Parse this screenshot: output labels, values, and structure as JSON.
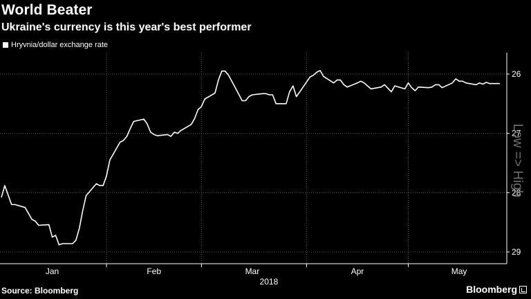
{
  "title": "World Beater",
  "subtitle": "Ukraine's currency is this year's best performer",
  "source": "Source: Bloomberg",
  "brand": "Bloomberg",
  "chart_data": {
    "type": "line",
    "legend": [
      "Hryvnia/dollar exchange rate"
    ],
    "xlabel": "2018",
    "x_tick_labels": [
      "Jan",
      "Feb",
      "Mar",
      "Apr",
      "May"
    ],
    "y_tick_labels": [
      "26",
      "27",
      "28",
      "29"
    ],
    "y_inverted": true,
    "ylim": [
      29.15,
      25.66
    ],
    "y_annotation": "Low => High",
    "grid": true,
    "series": [
      {
        "name": "Hryvnia/dollar exchange rate",
        "color": "#ffffff",
        "x": [
          "2018-01-01",
          "2018-01-02",
          "2018-01-03",
          "2018-01-04",
          "2018-01-05",
          "2018-01-08",
          "2018-01-09",
          "2018-01-10",
          "2018-01-11",
          "2018-01-12",
          "2018-01-15",
          "2018-01-16",
          "2018-01-17",
          "2018-01-18",
          "2018-01-19",
          "2018-01-22",
          "2018-01-23",
          "2018-01-24",
          "2018-01-25",
          "2018-01-26",
          "2018-01-29",
          "2018-01-30",
          "2018-01-31",
          "2018-02-01",
          "2018-02-02",
          "2018-02-05",
          "2018-02-06",
          "2018-02-07",
          "2018-02-08",
          "2018-02-09",
          "2018-02-12",
          "2018-02-13",
          "2018-02-14",
          "2018-02-15",
          "2018-02-16",
          "2018-02-19",
          "2018-02-20",
          "2018-02-21",
          "2018-02-22",
          "2018-02-23",
          "2018-02-26",
          "2018-02-27",
          "2018-02-28",
          "2018-03-01",
          "2018-03-02",
          "2018-03-05",
          "2018-03-06",
          "2018-03-07",
          "2018-03-08",
          "2018-03-09",
          "2018-03-12",
          "2018-03-13",
          "2018-03-14",
          "2018-03-15",
          "2018-03-16",
          "2018-03-19",
          "2018-03-20",
          "2018-03-21",
          "2018-03-22",
          "2018-03-23",
          "2018-03-26",
          "2018-03-27",
          "2018-03-28",
          "2018-03-29",
          "2018-03-30",
          "2018-04-02",
          "2018-04-03",
          "2018-04-04",
          "2018-04-05",
          "2018-04-06",
          "2018-04-09",
          "2018-04-10",
          "2018-04-11",
          "2018-04-12",
          "2018-04-13",
          "2018-04-16",
          "2018-04-17",
          "2018-04-18",
          "2018-04-19",
          "2018-04-20",
          "2018-04-23",
          "2018-04-24",
          "2018-04-25",
          "2018-04-26",
          "2018-04-27",
          "2018-04-30",
          "2018-05-01",
          "2018-05-02",
          "2018-05-03",
          "2018-05-04",
          "2018-05-07",
          "2018-05-08",
          "2018-05-09",
          "2018-05-10",
          "2018-05-11",
          "2018-05-14",
          "2018-05-15",
          "2018-05-16",
          "2018-05-17",
          "2018-05-18",
          "2018-05-21",
          "2018-05-22",
          "2018-05-23",
          "2018-05-24",
          "2018-05-25",
          "2018-05-28"
        ],
        "values": [
          28.08,
          27.88,
          28.04,
          28.2,
          28.2,
          28.25,
          28.35,
          28.45,
          28.48,
          28.55,
          28.54,
          28.75,
          28.72,
          28.88,
          28.86,
          28.86,
          28.8,
          28.6,
          28.3,
          28.05,
          27.85,
          27.88,
          27.88,
          27.72,
          27.45,
          27.15,
          27.12,
          27.05,
          26.92,
          26.8,
          26.76,
          26.84,
          26.98,
          27.02,
          27.04,
          27.02,
          27.05,
          26.98,
          27.0,
          26.95,
          26.85,
          26.75,
          26.6,
          26.55,
          26.42,
          26.32,
          26.1,
          25.95,
          25.95,
          26.02,
          26.34,
          26.45,
          26.45,
          26.38,
          26.35,
          26.33,
          26.33,
          26.35,
          26.35,
          26.5,
          26.5,
          26.3,
          26.2,
          26.38,
          26.3,
          26.05,
          26.02,
          25.97,
          25.94,
          26.04,
          26.15,
          26.1,
          26.1,
          26.18,
          26.22,
          26.15,
          26.12,
          26.15,
          26.2,
          26.25,
          26.22,
          26.18,
          26.24,
          26.3,
          26.2,
          26.25,
          26.15,
          26.23,
          26.28,
          26.22,
          26.23,
          26.22,
          26.18,
          26.18,
          26.23,
          26.15,
          26.08,
          26.12,
          26.12,
          26.15,
          26.18,
          26.15,
          26.17,
          26.14,
          26.16,
          26.16
        ]
      }
    ]
  }
}
